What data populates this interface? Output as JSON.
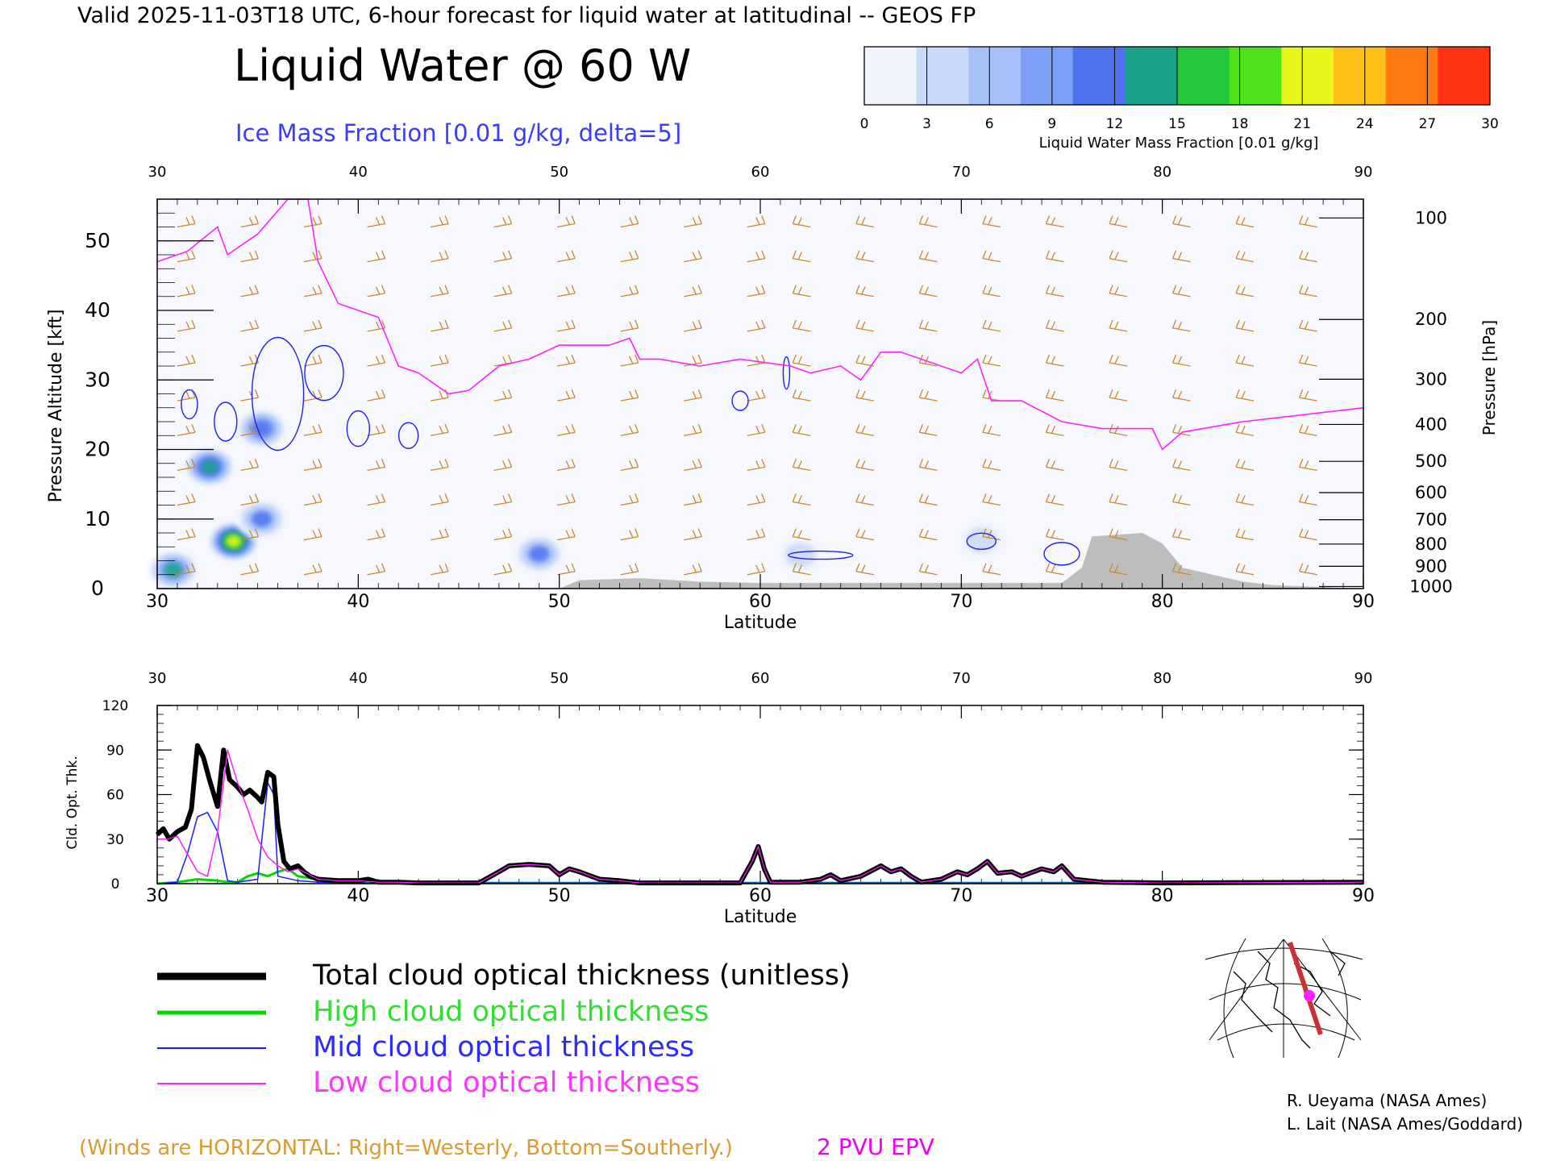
{
  "header": {
    "valid_line": "Valid 2025-11-03T18 UTC, 6-hour forecast for liquid water at latitudinal -- GEOS FP",
    "main_title": "Liquid Water @ 60 W",
    "subtitle": "Ice Mass Fraction [0.01 g/kg, delta=5]"
  },
  "colorbar": {
    "ticks": [
      "0",
      "3",
      "6",
      "9",
      "12",
      "15",
      "18",
      "21",
      "24",
      "27",
      "30"
    ],
    "label": "Liquid Water Mass Fraction [0.01 g/kg]",
    "colors": [
      "#f2f4fd",
      "#c9d8fb",
      "#a6c2f8",
      "#7c9ef4",
      "#4f73ee",
      "#1aa38a",
      "#22c83a",
      "#4de21a",
      "#e8f51a",
      "#ffc01a",
      "#ff7a12",
      "#ff3312"
    ]
  },
  "chart_data": [
    {
      "type": "heatmap",
      "title": "Liquid Water @ 60 W",
      "xlabel": "Latitude",
      "ylabel": "Pressure Altitude [kft]",
      "ylabel_right": "Pressure [hPa]",
      "xlim": [
        30,
        90
      ],
      "ylim": [
        0,
        56
      ],
      "x_ticks": [
        "30",
        "40",
        "50",
        "60",
        "70",
        "80",
        "90"
      ],
      "y_ticks": [
        "0",
        "10",
        "20",
        "30",
        "40",
        "50"
      ],
      "pressure_ticks": [
        {
          "label": "100",
          "kft": 53.3
        },
        {
          "label": "200",
          "kft": 38.7
        },
        {
          "label": "300",
          "kft": 30.1
        },
        {
          "label": "400",
          "kft": 23.6
        },
        {
          "label": "500",
          "kft": 18.3
        },
        {
          "label": "600",
          "kft": 13.8
        },
        {
          "label": "700",
          "kft": 9.9
        },
        {
          "label": "800",
          "kft": 6.4
        },
        {
          "label": "900",
          "kft": 3.2
        },
        {
          "label": "1000",
          "kft": 0.3
        }
      ],
      "liquid_water_blobs": [
        {
          "lat": 32.6,
          "kft": 17.5,
          "value": 14
        },
        {
          "lat": 33.8,
          "kft": 6.8,
          "value": 20
        },
        {
          "lat": 35.2,
          "kft": 23.0,
          "value": 12
        },
        {
          "lat": 30.8,
          "kft": 2.7,
          "value": 13
        },
        {
          "lat": 35.2,
          "kft": 10.0,
          "value": 10
        },
        {
          "lat": 49.0,
          "kft": 5.0,
          "value": 10
        },
        {
          "lat": 62.0,
          "kft": 4.8,
          "value": 3
        },
        {
          "lat": 71.0,
          "kft": 7.0,
          "value": 3
        }
      ],
      "ice_contour_label": "Ice Mass Fraction [0.01 g/kg, delta=5]",
      "epv_2pvu_line": [
        [
          30,
          47
        ],
        [
          31.5,
          48.5
        ],
        [
          33,
          52
        ],
        [
          33.5,
          48
        ],
        [
          35,
          51
        ],
        [
          36.5,
          56
        ],
        [
          37.5,
          56
        ],
        [
          38,
          47
        ],
        [
          39,
          41
        ],
        [
          41,
          39
        ],
        [
          42,
          32
        ],
        [
          43,
          31
        ],
        [
          44.5,
          28
        ],
        [
          45.5,
          28.5
        ],
        [
          47,
          32
        ],
        [
          48.5,
          33
        ],
        [
          50,
          35
        ],
        [
          51,
          35
        ],
        [
          52.5,
          35
        ],
        [
          53.5,
          36
        ],
        [
          54,
          33
        ],
        [
          55,
          33
        ],
        [
          57,
          32
        ],
        [
          59,
          33
        ],
        [
          61.5,
          32
        ],
        [
          62.5,
          31
        ],
        [
          64,
          32
        ],
        [
          65,
          30
        ],
        [
          66,
          34
        ],
        [
          67,
          34
        ],
        [
          68,
          33
        ],
        [
          69,
          32
        ],
        [
          70,
          31
        ],
        [
          70.8,
          33
        ],
        [
          71.5,
          27
        ],
        [
          73,
          27
        ],
        [
          75,
          24
        ],
        [
          77,
          23
        ],
        [
          79.5,
          23
        ],
        [
          80,
          20
        ],
        [
          81,
          22.5
        ],
        [
          84,
          24
        ],
        [
          87,
          25
        ],
        [
          90,
          26
        ]
      ],
      "topography_kft": [
        [
          30,
          0
        ],
        [
          50,
          0
        ],
        [
          51,
          1.2
        ],
        [
          54,
          1.5
        ],
        [
          57,
          1
        ],
        [
          60,
          0.8
        ],
        [
          65,
          0.8
        ],
        [
          70,
          0.8
        ],
        [
          75,
          0.8
        ],
        [
          76,
          3
        ],
        [
          76.5,
          7.5
        ],
        [
          79,
          8
        ],
        [
          80,
          6.5
        ],
        [
          81,
          3
        ],
        [
          82.5,
          2
        ],
        [
          84,
          1
        ],
        [
          85.5,
          0.5
        ],
        [
          90,
          0
        ]
      ],
      "wind_barbs_note": "(Winds are HORIZONTAL: Right=Westerly, Bottom=Southerly.)",
      "epv_label": "2 PVU EPV"
    },
    {
      "type": "line",
      "xlabel": "Latitude",
      "ylabel": "Cld. Opt. Thk.",
      "xlim": [
        30,
        90
      ],
      "ylim": [
        0,
        120
      ],
      "x_ticks": [
        "30",
        "40",
        "50",
        "60",
        "70",
        "80",
        "90"
      ],
      "y_ticks": [
        "0",
        "30",
        "60",
        "90",
        "120"
      ],
      "series": [
        {
          "name": "Total cloud optical thickness (unitless)",
          "color": "#000000",
          "points": [
            [
              30,
              33
            ],
            [
              30.3,
              37
            ],
            [
              30.6,
              30
            ],
            [
              31,
              35
            ],
            [
              31.4,
              38
            ],
            [
              31.7,
              50
            ],
            [
              32,
              93
            ],
            [
              32.3,
              85
            ],
            [
              32.6,
              70
            ],
            [
              33,
              52
            ],
            [
              33.3,
              90
            ],
            [
              33.6,
              70
            ],
            [
              34,
              65
            ],
            [
              34.3,
              60
            ],
            [
              34.6,
              63
            ],
            [
              35,
              58
            ],
            [
              35.2,
              55
            ],
            [
              35.5,
              75
            ],
            [
              35.8,
              72
            ],
            [
              36,
              40
            ],
            [
              36.3,
              15
            ],
            [
              36.6,
              10
            ],
            [
              37,
              12
            ],
            [
              37.3,
              8
            ],
            [
              37.6,
              5
            ],
            [
              38,
              3
            ],
            [
              39,
              2
            ],
            [
              40,
              2
            ],
            [
              40.5,
              3
            ],
            [
              41,
              1
            ],
            [
              42,
              1
            ],
            [
              43,
              0.5
            ],
            [
              45,
              0.5
            ],
            [
              46,
              0.5
            ],
            [
              47,
              8
            ],
            [
              47.5,
              12
            ],
            [
              48.5,
              13
            ],
            [
              49.5,
              12
            ],
            [
              50,
              6
            ],
            [
              50.5,
              10
            ],
            [
              51,
              8
            ],
            [
              52,
              3
            ],
            [
              53,
              2
            ],
            [
              54,
              0.5
            ],
            [
              59,
              0.5
            ],
            [
              59.6,
              15
            ],
            [
              59.9,
              25
            ],
            [
              60.2,
              10
            ],
            [
              60.5,
              1
            ],
            [
              62,
              1
            ],
            [
              63,
              3
            ],
            [
              63.5,
              6
            ],
            [
              64,
              2
            ],
            [
              65,
              5
            ],
            [
              66,
              12
            ],
            [
              66.5,
              8
            ],
            [
              67,
              10
            ],
            [
              67.5,
              5
            ],
            [
              68,
              1
            ],
            [
              69,
              3
            ],
            [
              69.8,
              8
            ],
            [
              70.3,
              6
            ],
            [
              70.8,
              10
            ],
            [
              71.3,
              15
            ],
            [
              71.8,
              7
            ],
            [
              72.5,
              8
            ],
            [
              73,
              5
            ],
            [
              74,
              10
            ],
            [
              74.6,
              8
            ],
            [
              75,
              12
            ],
            [
              75.6,
              3
            ],
            [
              77,
              1
            ],
            [
              80,
              0.5
            ],
            [
              90,
              1
            ]
          ]
        },
        {
          "name": "High cloud optical thickness",
          "color": "#00d800",
          "points": [
            [
              30,
              0
            ],
            [
              31,
              1
            ],
            [
              32,
              3
            ],
            [
              33,
              2
            ],
            [
              33.5,
              1
            ],
            [
              34,
              1
            ],
            [
              34.5,
              5
            ],
            [
              35,
              7
            ],
            [
              35.5,
              5
            ],
            [
              36,
              8
            ],
            [
              36.5,
              10
            ],
            [
              37,
              5
            ],
            [
              38,
              3
            ],
            [
              39,
              1
            ],
            [
              40,
              0.5
            ],
            [
              45,
              0.5
            ],
            [
              60,
              0.5
            ],
            [
              90,
              0.5
            ]
          ]
        },
        {
          "name": "Mid cloud optical thickness",
          "color": "#1a1aff",
          "points": [
            [
              30,
              0
            ],
            [
              31,
              1
            ],
            [
              31.5,
              20
            ],
            [
              32,
              45
            ],
            [
              32.5,
              48
            ],
            [
              33,
              35
            ],
            [
              33.5,
              2
            ],
            [
              34,
              1
            ],
            [
              35,
              3
            ],
            [
              35.5,
              68
            ],
            [
              35.8,
              60
            ],
            [
              36,
              5
            ],
            [
              37,
              2
            ],
            [
              38,
              1
            ],
            [
              40,
              0.5
            ],
            [
              50,
              0.5
            ],
            [
              60,
              0.5
            ],
            [
              90,
              0.5
            ]
          ]
        },
        {
          "name": "Low cloud optical thickness",
          "color": "#ff22ff",
          "points": [
            [
              30,
              30
            ],
            [
              30.5,
              30
            ],
            [
              31,
              32
            ],
            [
              31.5,
              20
            ],
            [
              32,
              8
            ],
            [
              32.5,
              5
            ],
            [
              33,
              35
            ],
            [
              33.5,
              90
            ],
            [
              34,
              68
            ],
            [
              34.5,
              50
            ],
            [
              35,
              30
            ],
            [
              35.5,
              18
            ],
            [
              36,
              12
            ],
            [
              36.5,
              8
            ],
            [
              37,
              10
            ],
            [
              38,
              3
            ],
            [
              39,
              2
            ],
            [
              40,
              2
            ],
            [
              41,
              1
            ],
            [
              42,
              1
            ],
            [
              43,
              0.5
            ],
            [
              46,
              0.5
            ],
            [
              47,
              8
            ],
            [
              47.5,
              12
            ],
            [
              48.5,
              13
            ],
            [
              49.5,
              12
            ],
            [
              50,
              6
            ],
            [
              50.5,
              10
            ],
            [
              51,
              8
            ],
            [
              52,
              3
            ],
            [
              53,
              2
            ],
            [
              54,
              0.5
            ],
            [
              59,
              0.5
            ],
            [
              59.6,
              15
            ],
            [
              59.9,
              25
            ],
            [
              60.2,
              10
            ],
            [
              60.5,
              1
            ],
            [
              62,
              1
            ],
            [
              63,
              3
            ],
            [
              63.5,
              6
            ],
            [
              64,
              2
            ],
            [
              65,
              5
            ],
            [
              66,
              12
            ],
            [
              66.5,
              8
            ],
            [
              67,
              10
            ],
            [
              67.5,
              5
            ],
            [
              68,
              1
            ],
            [
              69,
              3
            ],
            [
              69.8,
              8
            ],
            [
              70.3,
              6
            ],
            [
              70.8,
              10
            ],
            [
              71.3,
              15
            ],
            [
              71.8,
              7
            ],
            [
              72.5,
              8
            ],
            [
              73,
              5
            ],
            [
              74,
              10
            ],
            [
              74.6,
              8
            ],
            [
              75,
              12
            ],
            [
              75.6,
              3
            ],
            [
              77,
              1
            ],
            [
              80,
              0.5
            ],
            [
              90,
              1
            ]
          ]
        }
      ]
    }
  ],
  "legend": {
    "total": "Total cloud optical thickness (unitless)",
    "high": "High cloud optical thickness",
    "mid": "Mid cloud optical thickness",
    "low": "Low cloud optical thickness"
  },
  "credits": {
    "line1": "R. Ueyama (NASA Ames)",
    "line2": "L. Lait (NASA Ames/Goddard)"
  },
  "footer": {
    "winds_note": "(Winds are HORIZONTAL: Right=Westerly, Bottom=Southerly.)",
    "epv_label": "2 PVU EPV"
  }
}
